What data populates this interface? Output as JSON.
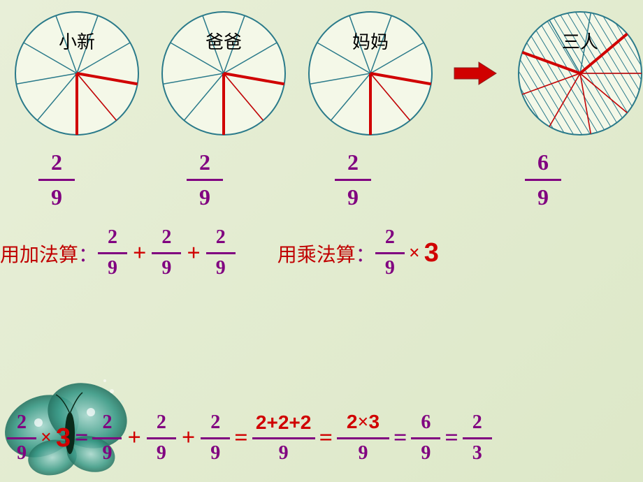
{
  "circles": {
    "count": 4,
    "labels": [
      "小新",
      "爸爸",
      "妈妈",
      "三人"
    ],
    "slices": 9,
    "highlight_slices": [
      2,
      2,
      2,
      6
    ],
    "radius": 95,
    "colors": {
      "outline": "#2a7a8a",
      "divider": "#2a7a8a",
      "highlight": "#d00000",
      "fill": "#f4f8e8"
    }
  },
  "arrow": {
    "color": "#d00000",
    "width": 60,
    "height": 30
  },
  "row1_fracs": [
    {
      "n": "2",
      "d": "9"
    },
    {
      "n": "2",
      "d": "9"
    },
    {
      "n": "2",
      "d": "9"
    },
    {
      "n": "6",
      "d": "9"
    }
  ],
  "methods": {
    "add_label_pre": "用加法算",
    "add_label_colon": "：",
    "mul_label_pre": "用乘法算",
    "mul_label_colon": "：",
    "add_terms": [
      {
        "n": "2",
        "d": "9"
      },
      {
        "n": "2",
        "d": "9"
      },
      {
        "n": "2",
        "d": "9"
      }
    ],
    "mul_frac": {
      "n": "2",
      "d": "9"
    },
    "times": "×",
    "mul_int": "3"
  },
  "equation": {
    "lhs_frac": {
      "n": "2",
      "d": "9"
    },
    "times": "×",
    "int": "3",
    "eq": "=",
    "sum_terms": [
      {
        "n": "2",
        "d": "9"
      },
      {
        "n": "2",
        "d": "9"
      },
      {
        "n": "2",
        "d": "9"
      }
    ],
    "expanded_num": "2+2+2",
    "expanded_den": "9",
    "mul_num_a": "2",
    "mul_num_op": "×",
    "mul_num_b": "3",
    "mul_den": "9",
    "result1": {
      "n": "6",
      "d": "9"
    },
    "result2": {
      "n": "2",
      "d": "3"
    }
  },
  "style": {
    "purple": "#800080",
    "red": "#d00000",
    "bg_start": "#e8efd8",
    "bg_end": "#dde8c8"
  }
}
